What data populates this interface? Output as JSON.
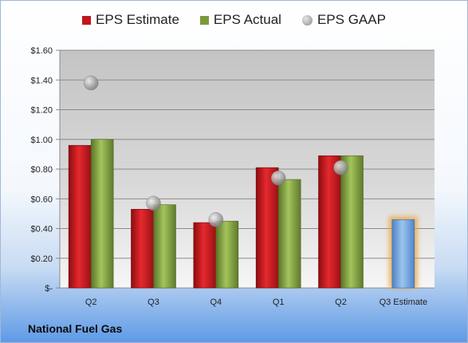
{
  "chart_data": {
    "type": "bar",
    "categories": [
      "Q2",
      "Q3",
      "Q4",
      "Q1",
      "Q2",
      "Q3 Estimate"
    ],
    "series": [
      {
        "name": "EPS Estimate",
        "values": [
          0.96,
          0.53,
          0.44,
          0.81,
          0.89,
          null
        ],
        "color": "#c0161c"
      },
      {
        "name": "EPS Actual",
        "values": [
          1.0,
          0.56,
          0.45,
          0.73,
          0.89,
          null
        ],
        "color": "#7a9a3a"
      },
      {
        "name": "EPS GAAP",
        "values": [
          1.38,
          0.57,
          0.46,
          0.74,
          0.81,
          null
        ],
        "color": "#9a9a9a",
        "marker": "circle"
      }
    ],
    "estimate": {
      "category": "Q3 Estimate",
      "value": 0.46,
      "color": "#6fa3dc",
      "glow": "#f0a030"
    },
    "ylim": [
      0,
      1.6
    ],
    "yticks": [
      0,
      0.2,
      0.4,
      0.6,
      0.8,
      1.0,
      1.2,
      1.4,
      1.6
    ],
    "ytick_labels": [
      "$-",
      "$0.20",
      "$0.40",
      "$0.60",
      "$0.80",
      "$1.00",
      "$1.20",
      "$1.40",
      "$1.60"
    ],
    "grid": true,
    "legend_position": "top"
  },
  "footer": {
    "company": "National Fuel Gas"
  }
}
